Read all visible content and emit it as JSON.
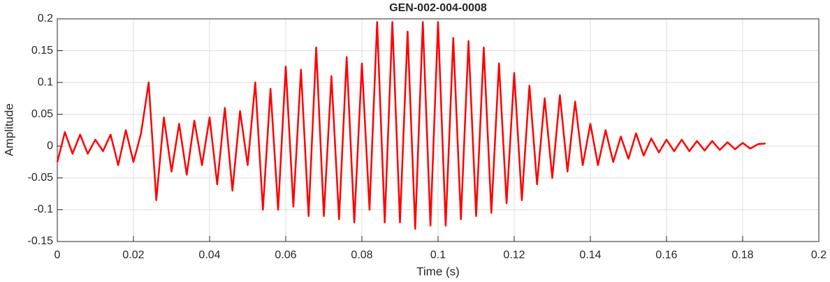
{
  "chart_data": {
    "type": "line",
    "title": "GEN-002-004-0008",
    "x_label": "Time (s)",
    "y_label": "Amplitude",
    "x": [
      0,
      0.002,
      0.004,
      0.006,
      0.008,
      0.01,
      0.012,
      0.014,
      0.016,
      0.018,
      0.02,
      0.022,
      0.024,
      0.026,
      0.028,
      0.03,
      0.032,
      0.034,
      0.036,
      0.038,
      0.04,
      0.042,
      0.044,
      0.046,
      0.048,
      0.05,
      0.052,
      0.054,
      0.056,
      0.058,
      0.06,
      0.062,
      0.064,
      0.066,
      0.068,
      0.07,
      0.072,
      0.074,
      0.076,
      0.078,
      0.08,
      0.082,
      0.084,
      0.086,
      0.088,
      0.09,
      0.092,
      0.094,
      0.096,
      0.098,
      0.1,
      0.102,
      0.104,
      0.106,
      0.108,
      0.11,
      0.112,
      0.114,
      0.116,
      0.118,
      0.12,
      0.122,
      0.124,
      0.126,
      0.128,
      0.13,
      0.132,
      0.134,
      0.136,
      0.138,
      0.14,
      0.142,
      0.144,
      0.146,
      0.148,
      0.15,
      0.152,
      0.154,
      0.156,
      0.158,
      0.16,
      0.162,
      0.164,
      0.166,
      0.168,
      0.17,
      0.172,
      0.174,
      0.176,
      0.178,
      0.18,
      0.182,
      0.184,
      0.186
    ],
    "values": [
      -0.025,
      0.022,
      -0.012,
      0.018,
      -0.012,
      0.01,
      -0.008,
      0.018,
      -0.03,
      0.025,
      -0.025,
      0.02,
      0.1,
      -0.085,
      0.045,
      -0.04,
      0.035,
      -0.045,
      0.04,
      -0.03,
      0.045,
      -0.06,
      0.06,
      -0.07,
      0.055,
      -0.03,
      0.1,
      -0.1,
      0.09,
      -0.1,
      0.125,
      -0.095,
      0.12,
      -0.11,
      0.155,
      -0.11,
      0.11,
      -0.115,
      0.14,
      -0.12,
      0.13,
      -0.1,
      0.195,
      -0.12,
      0.195,
      -0.12,
      0.18,
      -0.13,
      0.195,
      -0.125,
      0.195,
      -0.125,
      0.17,
      -0.115,
      0.165,
      -0.11,
      0.155,
      -0.105,
      0.13,
      -0.09,
      0.115,
      -0.085,
      0.095,
      -0.06,
      0.075,
      -0.05,
      0.08,
      -0.04,
      0.07,
      -0.03,
      0.035,
      -0.03,
      0.025,
      -0.025,
      0.015,
      -0.02,
      0.02,
      -0.015,
      0.012,
      -0.01,
      0.01,
      -0.008,
      0.01,
      -0.008,
      0.008,
      -0.007,
      0.008,
      -0.006,
      0.006,
      -0.005,
      0.005,
      -0.004,
      0.003,
      0.004
    ],
    "color": "#ff0000",
    "xlim": [
      0,
      0.2
    ],
    "xticks": [
      0,
      0.02,
      0.04,
      0.06,
      0.08,
      0.1,
      0.12,
      0.14,
      0.16,
      0.18,
      0.2
    ],
    "ylim": [
      -0.15,
      0.2
    ],
    "yticks": [
      -0.15,
      -0.1,
      -0.05,
      0,
      0.05,
      0.1,
      0.15,
      0.2
    ],
    "grid": true
  }
}
